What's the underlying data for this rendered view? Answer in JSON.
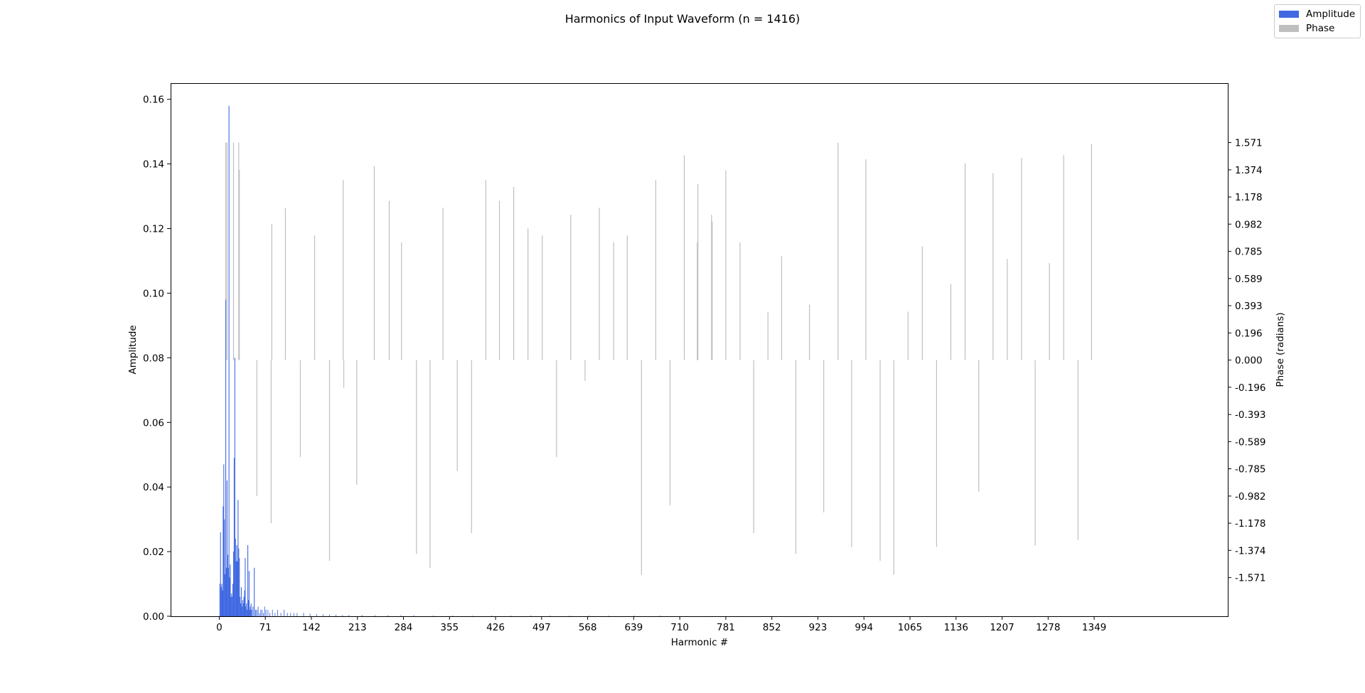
{
  "chart_data": {
    "type": "bar",
    "title": "Harmonics of Input Waveform (n = 1416)",
    "xlabel": "Harmonic #",
    "ylabel": "Amplitude",
    "ylabel_right": "Phase (radians)",
    "xlim": [
      -75,
      1555
    ],
    "ylim": [
      0,
      0.165
    ],
    "ylim_right": [
      -1.85,
      2.0
    ],
    "x_ticks": [
      0,
      71,
      142,
      213,
      284,
      355,
      426,
      497,
      568,
      639,
      710,
      781,
      852,
      923,
      994,
      1065,
      1136,
      1207,
      1278,
      1349
    ],
    "y_ticks": [
      "0.00",
      "0.02",
      "0.04",
      "0.06",
      "0.08",
      "0.10",
      "0.12",
      "0.14",
      "0.16"
    ],
    "y_ticks_right": [
      "-1.571",
      "-1.374",
      "-1.178",
      "-0.982",
      "-0.785",
      "-0.589",
      "-0.393",
      "-0.196",
      "0.000",
      "0.196",
      "0.393",
      "0.589",
      "0.785",
      "0.982",
      "1.178",
      "1.374",
      "1.571"
    ],
    "legend": {
      "placement": "top-right",
      "entries": [
        "Amplitude",
        "Phase"
      ]
    },
    "colors": {
      "amplitude": "#4169e1",
      "phase": "#bfbfbf"
    },
    "series": [
      {
        "name": "Amplitude",
        "x": [
          1,
          2,
          3,
          4,
          5,
          6,
          7,
          8,
          9,
          10,
          11,
          12,
          13,
          14,
          15,
          16,
          17,
          18,
          19,
          20,
          21,
          22,
          23,
          24,
          25,
          26,
          27,
          28,
          29,
          30,
          31,
          32,
          33,
          34,
          35,
          36,
          37,
          38,
          39,
          40,
          41,
          42,
          43,
          44,
          45,
          46,
          47,
          48,
          49,
          50,
          52,
          54,
          56,
          58,
          60,
          62,
          64,
          66,
          68,
          70,
          72,
          75,
          78,
          82,
          86,
          90,
          95,
          100,
          105,
          110,
          115,
          120,
          130,
          140,
          150,
          160,
          170,
          180,
          190,
          200,
          220,
          240,
          260,
          280,
          300,
          330,
          360,
          390,
          420,
          450,
          480,
          510,
          540,
          570,
          600,
          640,
          680,
          720,
          760,
          800,
          850,
          900
        ],
        "values": [
          0.01,
          0.026,
          0.009,
          0.01,
          0.008,
          0.034,
          0.047,
          0.03,
          0.013,
          0.098,
          0.015,
          0.042,
          0.019,
          0.015,
          0.158,
          0.012,
          0.016,
          0.006,
          0.007,
          0.006,
          0.01,
          0.02,
          0.049,
          0.08,
          0.024,
          0.017,
          0.022,
          0.017,
          0.036,
          0.021,
          0.018,
          0.006,
          0.004,
          0.009,
          0.003,
          0.005,
          0.004,
          0.006,
          0.008,
          0.018,
          0.003,
          0.004,
          0.002,
          0.022,
          0.005,
          0.014,
          0.002,
          0.003,
          0.004,
          0.002,
          0.003,
          0.015,
          0.002,
          0.002,
          0.003,
          0.001,
          0.002,
          0.002,
          0.001,
          0.003,
          0.002,
          0.002,
          0.001,
          0.002,
          0.001,
          0.002,
          0.001,
          0.002,
          0.001,
          0.001,
          0.001,
          0.001,
          0.001,
          0.0008,
          0.0007,
          0.0006,
          0.0005,
          0.0005,
          0.0004,
          0.0004,
          0.0004,
          0.0003,
          0.0003,
          0.0003,
          0.0003,
          0.0002,
          0.0002,
          0.0002,
          0.0002,
          0.0002,
          0.0002,
          0.0002,
          0.0002,
          0.0002,
          0.0002,
          0.0002,
          0.0002,
          0.0001,
          0.0001,
          0.0001,
          0.0001,
          0.0001
        ]
      },
      {
        "name": "Phase",
        "x": [
          10,
          12,
          22,
          30,
          31,
          58,
          80,
          81,
          102,
          125,
          147,
          170,
          191,
          192,
          212,
          239,
          262,
          281,
          304,
          325,
          345,
          367,
          389,
          411,
          432,
          454,
          476,
          498,
          520,
          542,
          564,
          586,
          608,
          629,
          651,
          673,
          695,
          717,
          737,
          738,
          759,
          760,
          781,
          803,
          824,
          846,
          867,
          889,
          910,
          932,
          954,
          975,
          997,
          1019,
          1040,
          1062,
          1084,
          1106,
          1128,
          1150,
          1171,
          1193,
          1215,
          1237,
          1258,
          1280,
          1302,
          1324,
          1345
        ],
        "values": [
          1.571,
          1.571,
          1.571,
          1.571,
          1.374,
          -0.982,
          -1.178,
          0.982,
          1.1,
          -0.7,
          0.9,
          -1.45,
          1.3,
          -0.2,
          -0.9,
          1.4,
          1.15,
          0.85,
          -1.4,
          -1.5,
          1.1,
          -0.8,
          -1.25,
          1.3,
          1.15,
          1.25,
          0.95,
          0.9,
          -0.7,
          1.05,
          -0.15,
          1.1,
          0.85,
          0.9,
          -1.55,
          1.3,
          -1.05,
          1.48,
          0.85,
          1.27,
          1.05,
          1.0,
          1.37,
          0.85,
          -1.25,
          0.35,
          0.75,
          -1.4,
          0.4,
          -1.1,
          1.57,
          -1.35,
          1.45,
          -1.45,
          -1.55,
          0.35,
          0.82,
          -1.35,
          0.55,
          1.42,
          -0.95,
          1.35,
          0.73,
          1.46,
          -1.34,
          0.7,
          1.48,
          -1.3,
          1.56
        ]
      }
    ]
  }
}
